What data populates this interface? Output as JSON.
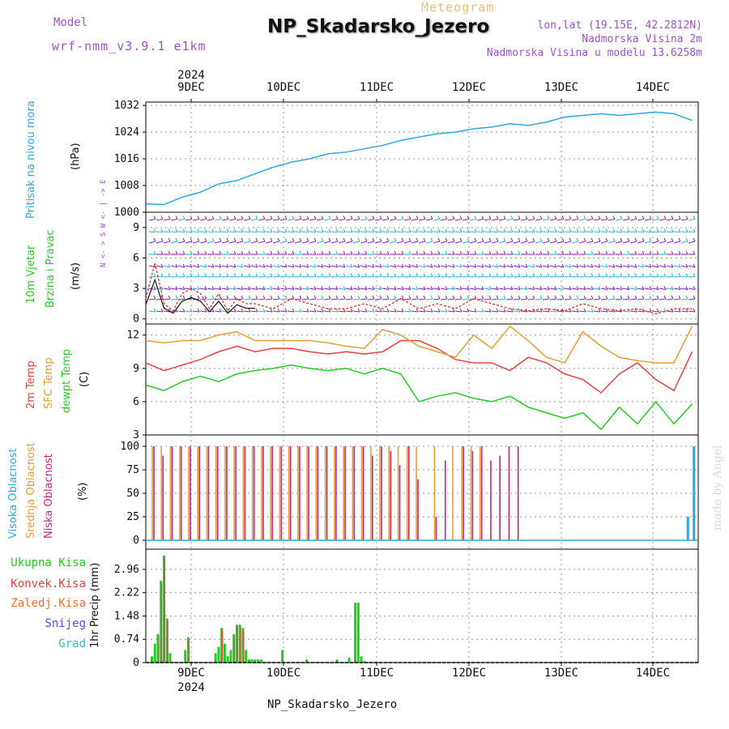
{
  "header": {
    "meteogram": "Meteogram",
    "title": "NP_Skadarsko_Jezero",
    "model_label": "Model",
    "model_name": "wrf-nmm_v3.9.1 e1km",
    "lonlat": "lon,lat (19.15E, 42.2812N)",
    "altitude": "Nadmorska Visina 2m",
    "model_altitude": "Nadmorska Visina u modelu 13.6258m",
    "footer": "NP_Skadarsko_Jezero",
    "watermark": "made by Angel"
  },
  "colors": {
    "pressure": "#2aa8e0",
    "temp2m": "#e84040",
    "sfc": "#e0a030",
    "dewpt": "#22cc22",
    "wind_barb": "#8820cc",
    "wind_barb2": "#20b8d0",
    "wind_speed": "#e03030",
    "high_cloud": "#2aa8e0",
    "mid_cloud": "#e0a030",
    "low_cloud": "#cc2080",
    "precip": "#22cc22"
  },
  "chart_data": [
    {
      "type": "line",
      "name": "pressure",
      "ylabel": [
        "Pritisak na nivou mora",
        "(hPa)"
      ],
      "yticks": [
        1000,
        1008,
        1016,
        1024,
        1032
      ],
      "ylim": [
        1000,
        1033
      ],
      "xticks": [
        "9DEC",
        "10DEC",
        "11DEC",
        "12DEC",
        "13DEC",
        "14DEC"
      ],
      "top_year": "2024",
      "x_hours": [
        0,
        6,
        12,
        18,
        24,
        30,
        36,
        42,
        48,
        54,
        60,
        66,
        72,
        78,
        84,
        90,
        96,
        102,
        108,
        114,
        120,
        126,
        132,
        138,
        144,
        150,
        156,
        162,
        168,
        174,
        180
      ],
      "series": [
        {
          "values": [
            1002.5,
            1002.3,
            1004.5,
            1006.0,
            1008.5,
            1009.5,
            1011.5,
            1013.5,
            1015.0,
            1016.0,
            1017.5,
            1018.0,
            1019.0,
            1020.0,
            1021.5,
            1022.5,
            1023.5,
            1024.0,
            1025.0,
            1025.5,
            1026.5,
            1026.0,
            1027.0,
            1028.5,
            1029.0,
            1029.5,
            1029.0,
            1029.5,
            1030.0,
            1029.5,
            1027.5
          ]
        }
      ]
    },
    {
      "type": "line",
      "name": "wind",
      "ylabel": [
        "10m Vjetar",
        "Brzina i Pravac",
        "(m/s)"
      ],
      "compass": "N <- > S  W <- | -> E",
      "yticks": [
        0,
        3,
        6,
        9
      ],
      "ylim": [
        -0.5,
        10.5
      ],
      "x_hours": [
        0,
        3,
        6,
        9,
        12,
        15,
        18,
        21,
        24,
        27,
        30,
        33,
        36,
        42,
        48,
        54,
        60,
        66,
        72,
        78,
        84,
        90,
        96,
        102,
        108,
        114,
        120,
        126,
        132,
        138,
        144,
        150,
        156,
        162,
        168,
        174,
        180
      ],
      "series": [
        {
          "name": "speed",
          "values": [
            2.0,
            5.5,
            1.5,
            0.8,
            2.5,
            3.0,
            2.5,
            1.0,
            2.5,
            0.8,
            2.0,
            1.5,
            1.5,
            1.0,
            2.0,
            1.5,
            1.0,
            1.0,
            1.5,
            1.0,
            2.0,
            1.0,
            1.5,
            1.0,
            2.0,
            1.5,
            1.0,
            0.8,
            1.0,
            0.8,
            1.5,
            1.0,
            0.8,
            1.0,
            0.5,
            1.0,
            1.0
          ]
        }
      ]
    },
    {
      "type": "line",
      "name": "temperature",
      "ylabel": [
        "2m Temp",
        "SFC Temp",
        "dewpt Temp",
        "(C)"
      ],
      "yticks": [
        3,
        6,
        9,
        12
      ],
      "ylim": [
        3,
        13
      ],
      "x_hours": [
        0,
        6,
        12,
        18,
        24,
        30,
        36,
        42,
        48,
        54,
        60,
        66,
        72,
        78,
        84,
        90,
        96,
        102,
        108,
        114,
        120,
        126,
        132,
        138,
        144,
        150,
        156,
        162,
        168,
        174,
        180
      ],
      "series": [
        {
          "name": "2m Temp",
          "values": [
            9.5,
            8.8,
            9.3,
            9.8,
            10.5,
            11.0,
            10.5,
            10.8,
            10.8,
            10.5,
            10.3,
            10.5,
            10.3,
            10.5,
            11.5,
            11.5,
            10.8,
            9.8,
            9.5,
            9.5,
            8.8,
            10.0,
            9.5,
            8.5,
            8.0,
            6.8,
            8.5,
            9.5,
            8.0,
            7.0,
            10.5
          ]
        },
        {
          "name": "SFC Temp",
          "values": [
            11.5,
            11.3,
            11.5,
            11.5,
            12.0,
            12.3,
            11.5,
            11.5,
            11.5,
            11.5,
            11.3,
            11.0,
            10.8,
            12.5,
            12.0,
            11.0,
            10.5,
            10.0,
            12.0,
            10.8,
            12.8,
            11.5,
            10.0,
            9.5,
            12.3,
            11.0,
            10.0,
            9.7,
            9.5,
            9.5,
            12.8
          ]
        },
        {
          "name": "dewpt Temp",
          "values": [
            7.5,
            7.0,
            7.8,
            8.3,
            7.8,
            8.5,
            8.8,
            9.0,
            9.3,
            9.0,
            8.8,
            9.0,
            8.5,
            9.0,
            8.5,
            6.0,
            6.5,
            6.8,
            6.3,
            6.0,
            6.5,
            5.5,
            5.0,
            4.5,
            5.0,
            3.5,
            5.5,
            4.0,
            6.0,
            4.0,
            5.8
          ]
        }
      ]
    },
    {
      "type": "bar",
      "name": "clouds",
      "ylabel": [
        "Visoka Oblacnost",
        "Srednja Oblacnost",
        "Niska Oblacnost",
        "(%)"
      ],
      "yticks": [
        0,
        25,
        50,
        75,
        100
      ],
      "ylim": [
        0,
        100
      ],
      "x_hours": [
        0,
        3,
        6,
        9,
        12,
        15,
        18,
        21,
        24,
        27,
        30,
        33,
        36,
        39,
        42,
        45,
        48,
        51,
        54,
        57,
        60,
        63,
        66,
        69,
        72,
        75,
        78,
        81,
        84,
        87,
        90,
        93,
        96,
        99,
        102,
        105,
        108,
        111,
        114,
        117,
        120,
        177,
        179
      ],
      "series": [
        {
          "name": "Visoka",
          "values": [
            0,
            0,
            0,
            0,
            0,
            0,
            0,
            0,
            0,
            0,
            0,
            0,
            0,
            0,
            0,
            0,
            0,
            0,
            0,
            0,
            0,
            0,
            0,
            0,
            0,
            0,
            0,
            0,
            0,
            0,
            0,
            0,
            0,
            0,
            0,
            0,
            0,
            0,
            0,
            0,
            0,
            25,
            100
          ]
        },
        {
          "name": "Srednja",
          "values": [
            100,
            100,
            100,
            100,
            100,
            100,
            100,
            100,
            100,
            100,
            100,
            100,
            100,
            100,
            100,
            100,
            100,
            100,
            100,
            100,
            100,
            100,
            100,
            100,
            100,
            100,
            100,
            100,
            100,
            100,
            0,
            100,
            0,
            100,
            100,
            100,
            100,
            0,
            0,
            0,
            0,
            0,
            0
          ]
        },
        {
          "name": "Niska",
          "values": [
            100,
            90,
            100,
            100,
            100,
            100,
            100,
            100,
            100,
            100,
            100,
            100,
            100,
            100,
            100,
            100,
            100,
            100,
            100,
            100,
            100,
            100,
            100,
            100,
            90,
            100,
            95,
            80,
            100,
            65,
            0,
            25,
            85,
            0,
            100,
            95,
            100,
            85,
            90,
            100,
            100,
            0,
            0
          ]
        }
      ]
    },
    {
      "type": "bar",
      "name": "precip",
      "ylabel": [
        "1hr Precip (mm)"
      ],
      "legend": [
        "Ukupna Kisa",
        "Konvek.Kisa",
        "Zaledj.Kisa",
        "Snijeg",
        "Grad"
      ],
      "yticks": [
        0,
        0.74,
        1.48,
        2.22,
        2.96
      ],
      "ylim": [
        0,
        3.6
      ],
      "bottom_year": "2024",
      "x_hours": [
        2,
        3,
        4,
        5,
        6,
        7,
        8,
        13,
        14,
        23,
        24,
        25,
        26,
        27,
        28,
        29,
        30,
        31,
        32,
        33,
        34,
        35,
        36,
        37,
        38,
        45,
        53,
        63,
        67,
        69,
        70,
        71,
        72
      ],
      "series": [
        {
          "name": "Ukupna Kisa",
          "values": [
            0.2,
            0.6,
            0.9,
            2.6,
            3.4,
            1.4,
            0.3,
            0.4,
            0.8,
            0.3,
            0.5,
            1.1,
            0.6,
            0.2,
            0.4,
            0.9,
            1.2,
            1.2,
            1.1,
            0.4,
            0.1,
            0.1,
            0.1,
            0.1,
            0.1,
            0.4,
            0.1,
            0.1,
            0.15,
            1.9,
            1.9,
            0.2,
            0.05
          ]
        }
      ]
    }
  ]
}
